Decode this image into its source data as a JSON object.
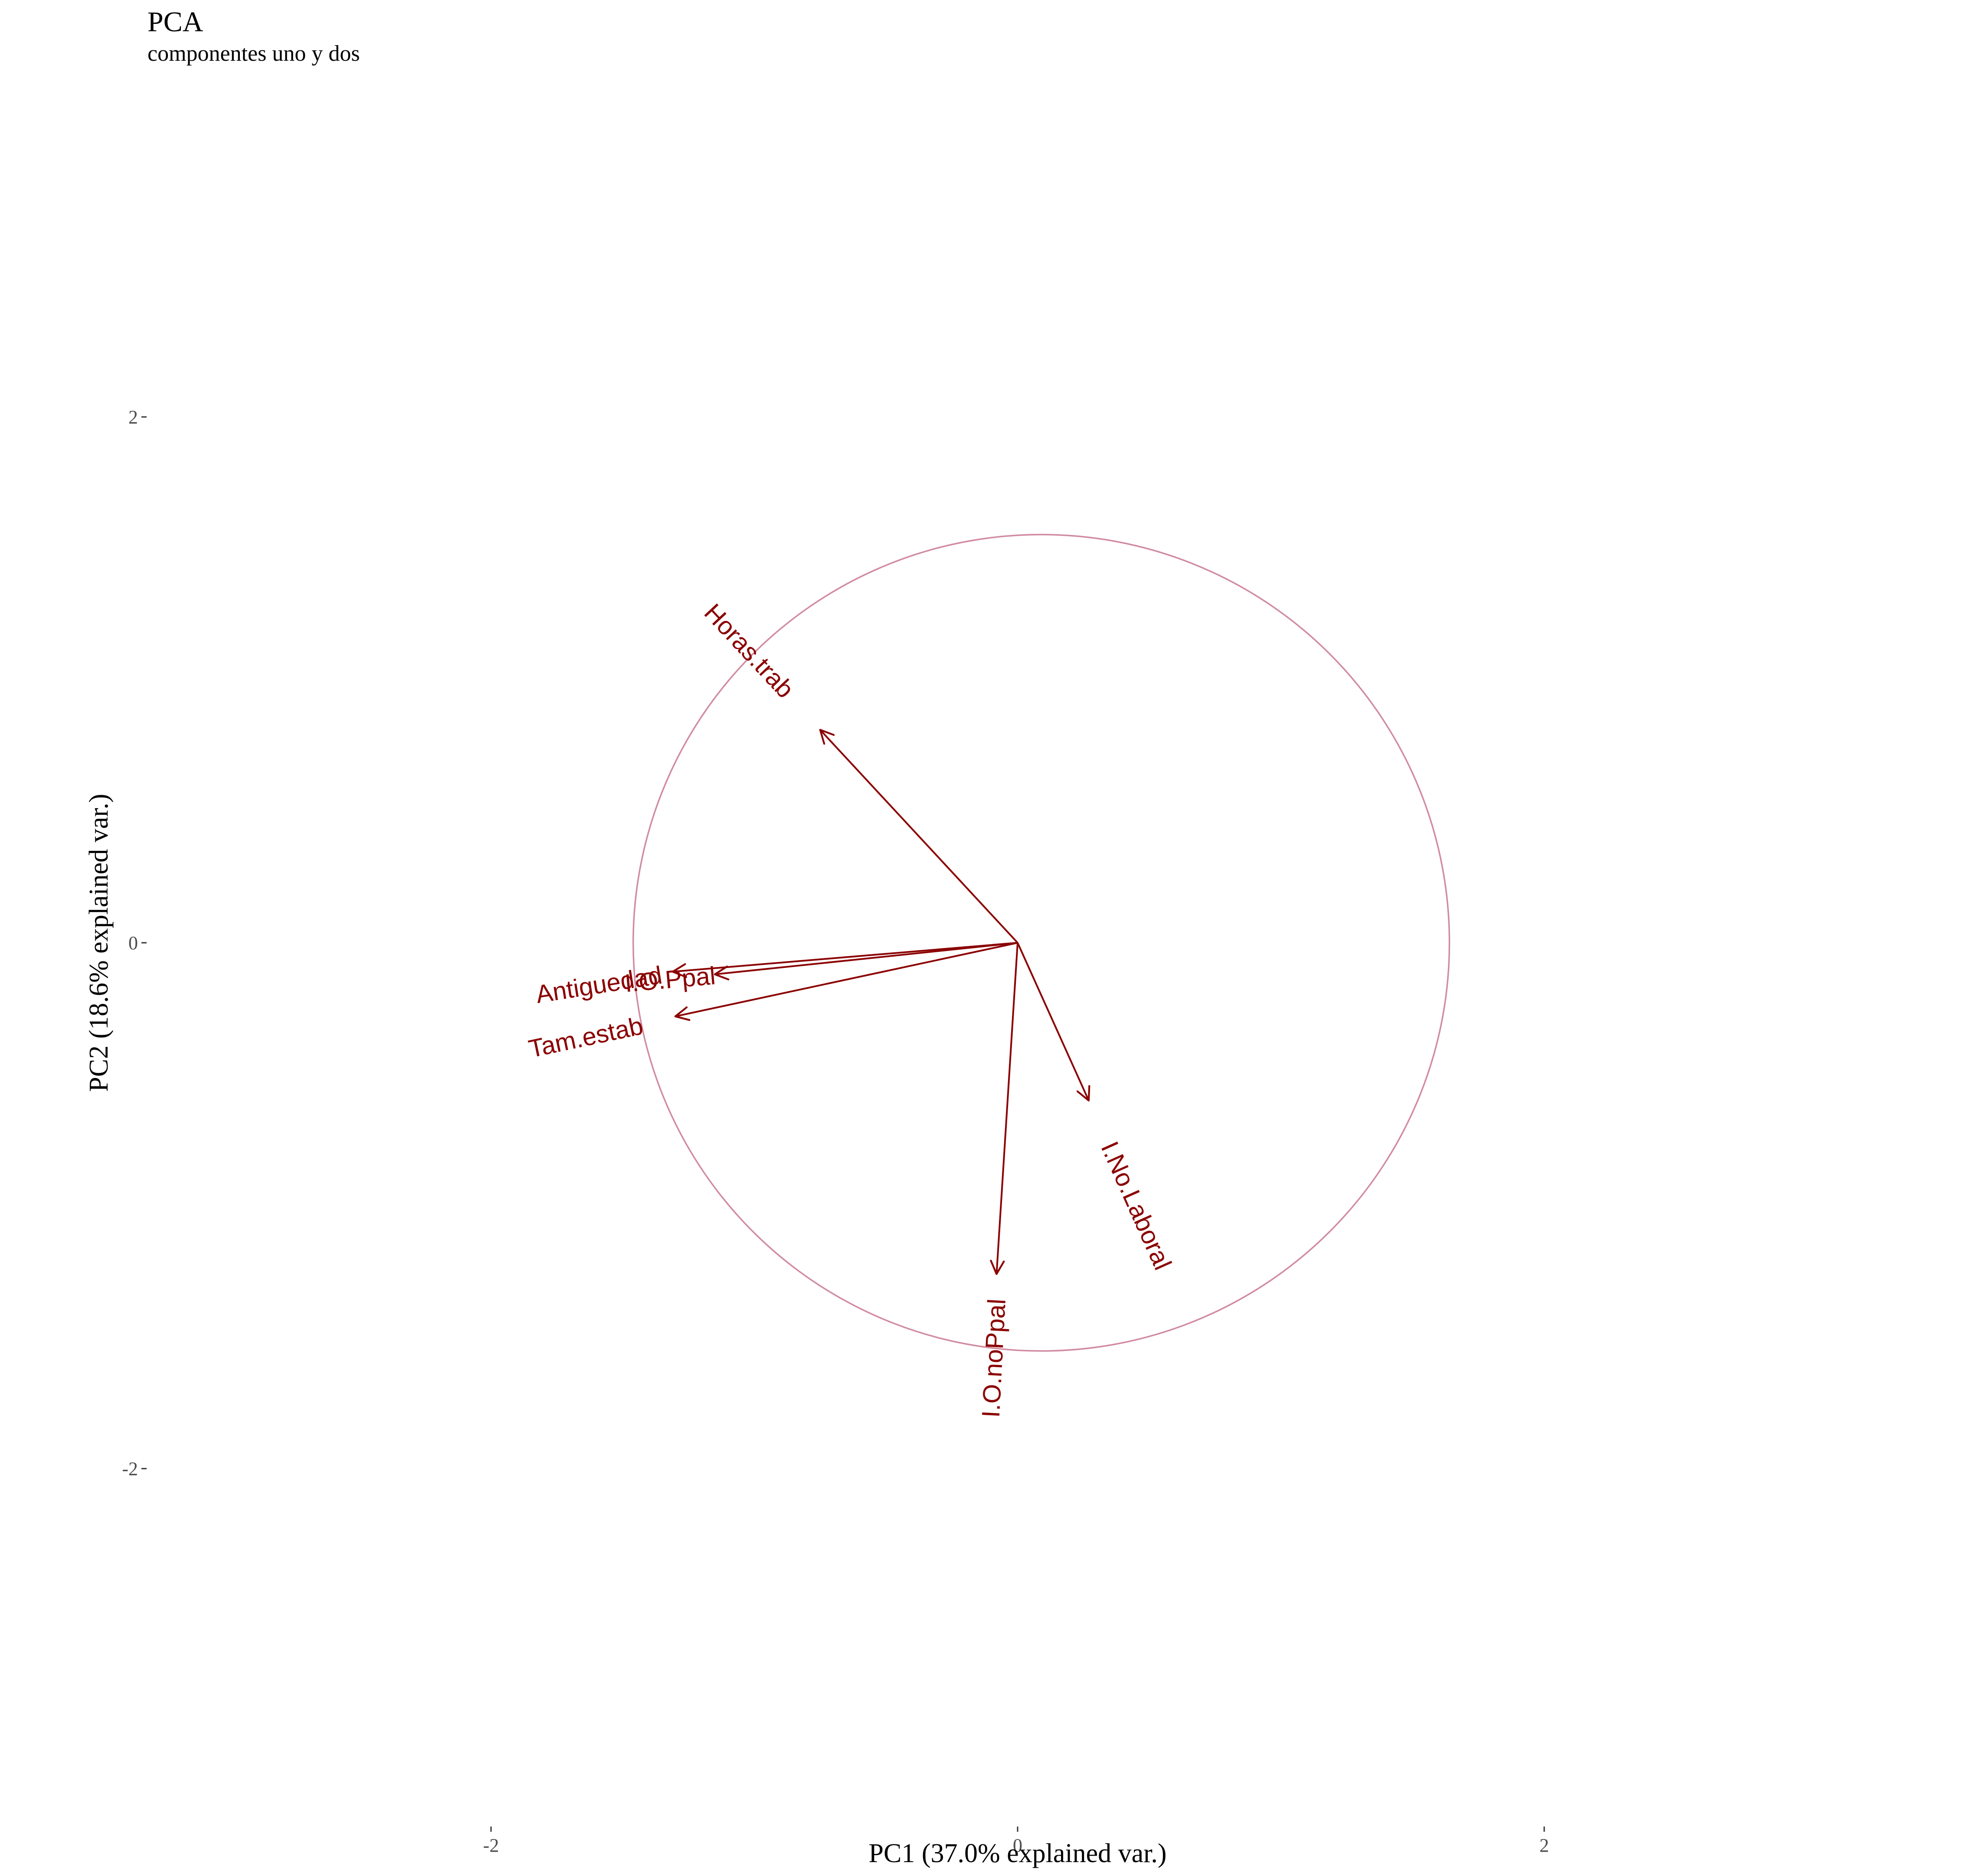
{
  "chart_data": {
    "type": "scatter",
    "subtype": "pca-biplot-loadings",
    "title": "PCA",
    "subtitle": "componentes uno y dos",
    "xlabel": "PC1 (37.0% explained var.)",
    "ylabel": "PC2 (18.6% explained var.)",
    "xlim": [
      -2.0,
      2.0
    ],
    "ylim": [
      -3.2,
      3.5
    ],
    "x_ticks": [
      -2,
      0,
      2
    ],
    "y_ticks": [
      -2,
      0,
      2
    ],
    "x_tick_labels": [
      "-2",
      "0",
      "2"
    ],
    "y_tick_labels": [
      "-2",
      "0",
      "2"
    ],
    "grid": false,
    "circle": {
      "center": [
        0.09,
        0.0
      ],
      "radius": 1.55,
      "color": "#c9778f"
    },
    "arrow_color": "#8b0000",
    "label_color": "#8b0000",
    "vectors": [
      {
        "name": "Horas.trab",
        "x": -0.75,
        "y": 0.81
      },
      {
        "name": "Antiguedad",
        "x": -1.31,
        "y": -0.11
      },
      {
        "name": "I.O.Ppal",
        "x": -1.15,
        "y": -0.12
      },
      {
        "name": "Tam.estab",
        "x": -1.3,
        "y": -0.28
      },
      {
        "name": "I.No.Laboral",
        "x": 0.27,
        "y": -0.6
      },
      {
        "name": "I.O.noPpal",
        "x": -0.08,
        "y": -1.26
      }
    ],
    "labels": [
      {
        "name": "Horas.trab",
        "x": -1.02,
        "y": 1.11,
        "angle": 47
      },
      {
        "name": "Antiguedad",
        "x": -1.59,
        "y": -0.16,
        "angle": -9
      },
      {
        "name": "I.O.Ppal",
        "x": -1.32,
        "y": -0.14,
        "angle": -5
      },
      {
        "name": "Tam.estab",
        "x": -1.64,
        "y": -0.36,
        "angle": -12
      },
      {
        "name": "I.No.Laboral",
        "x": 0.45,
        "y": -1.0,
        "angle": 66
      },
      {
        "name": "I.O.noPpal",
        "x": -0.09,
        "y": -1.58,
        "angle": -87
      }
    ]
  }
}
